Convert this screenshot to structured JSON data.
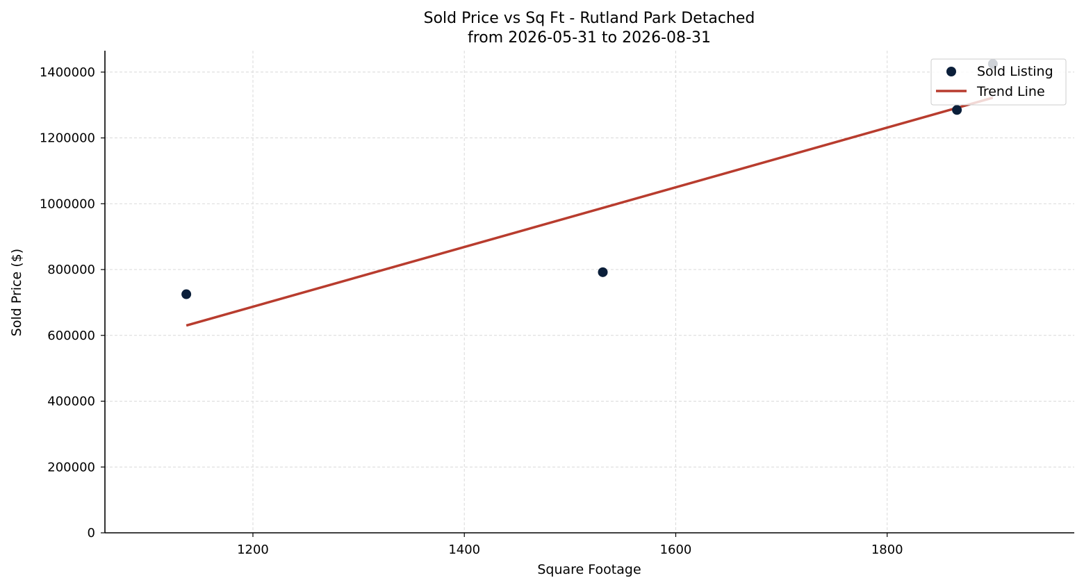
{
  "chart_data": {
    "type": "scatter",
    "title": "Sold Price vs Sq Ft - Rutland Park Detached",
    "subtitle": "from 2026-05-31 to 2026-08-31",
    "xlabel": "Square Footage",
    "ylabel": "Sold Price ($)",
    "xlim": [
      1060,
      1977
    ],
    "ylim": [
      0,
      1465000
    ],
    "x_ticks": [
      1200,
      1400,
      1600,
      1800
    ],
    "y_ticks": [
      0,
      200000,
      400000,
      600000,
      800000,
      1000000,
      1200000,
      1400000
    ],
    "grid": true,
    "legend_position": "top-right",
    "series": [
      {
        "name": "Sold Listing",
        "kind": "scatter",
        "color": "#0b1f3a",
        "points": [
          {
            "x": 1137,
            "y": 725000
          },
          {
            "x": 1531,
            "y": 792000
          },
          {
            "x": 1866,
            "y": 1285000
          },
          {
            "x": 1900,
            "y": 1425000
          }
        ]
      },
      {
        "name": "Trend Line",
        "kind": "line",
        "color": "#b83c2e",
        "points": [
          {
            "x": 1137,
            "y": 630000
          },
          {
            "x": 1900,
            "y": 1322000
          }
        ]
      }
    ]
  }
}
